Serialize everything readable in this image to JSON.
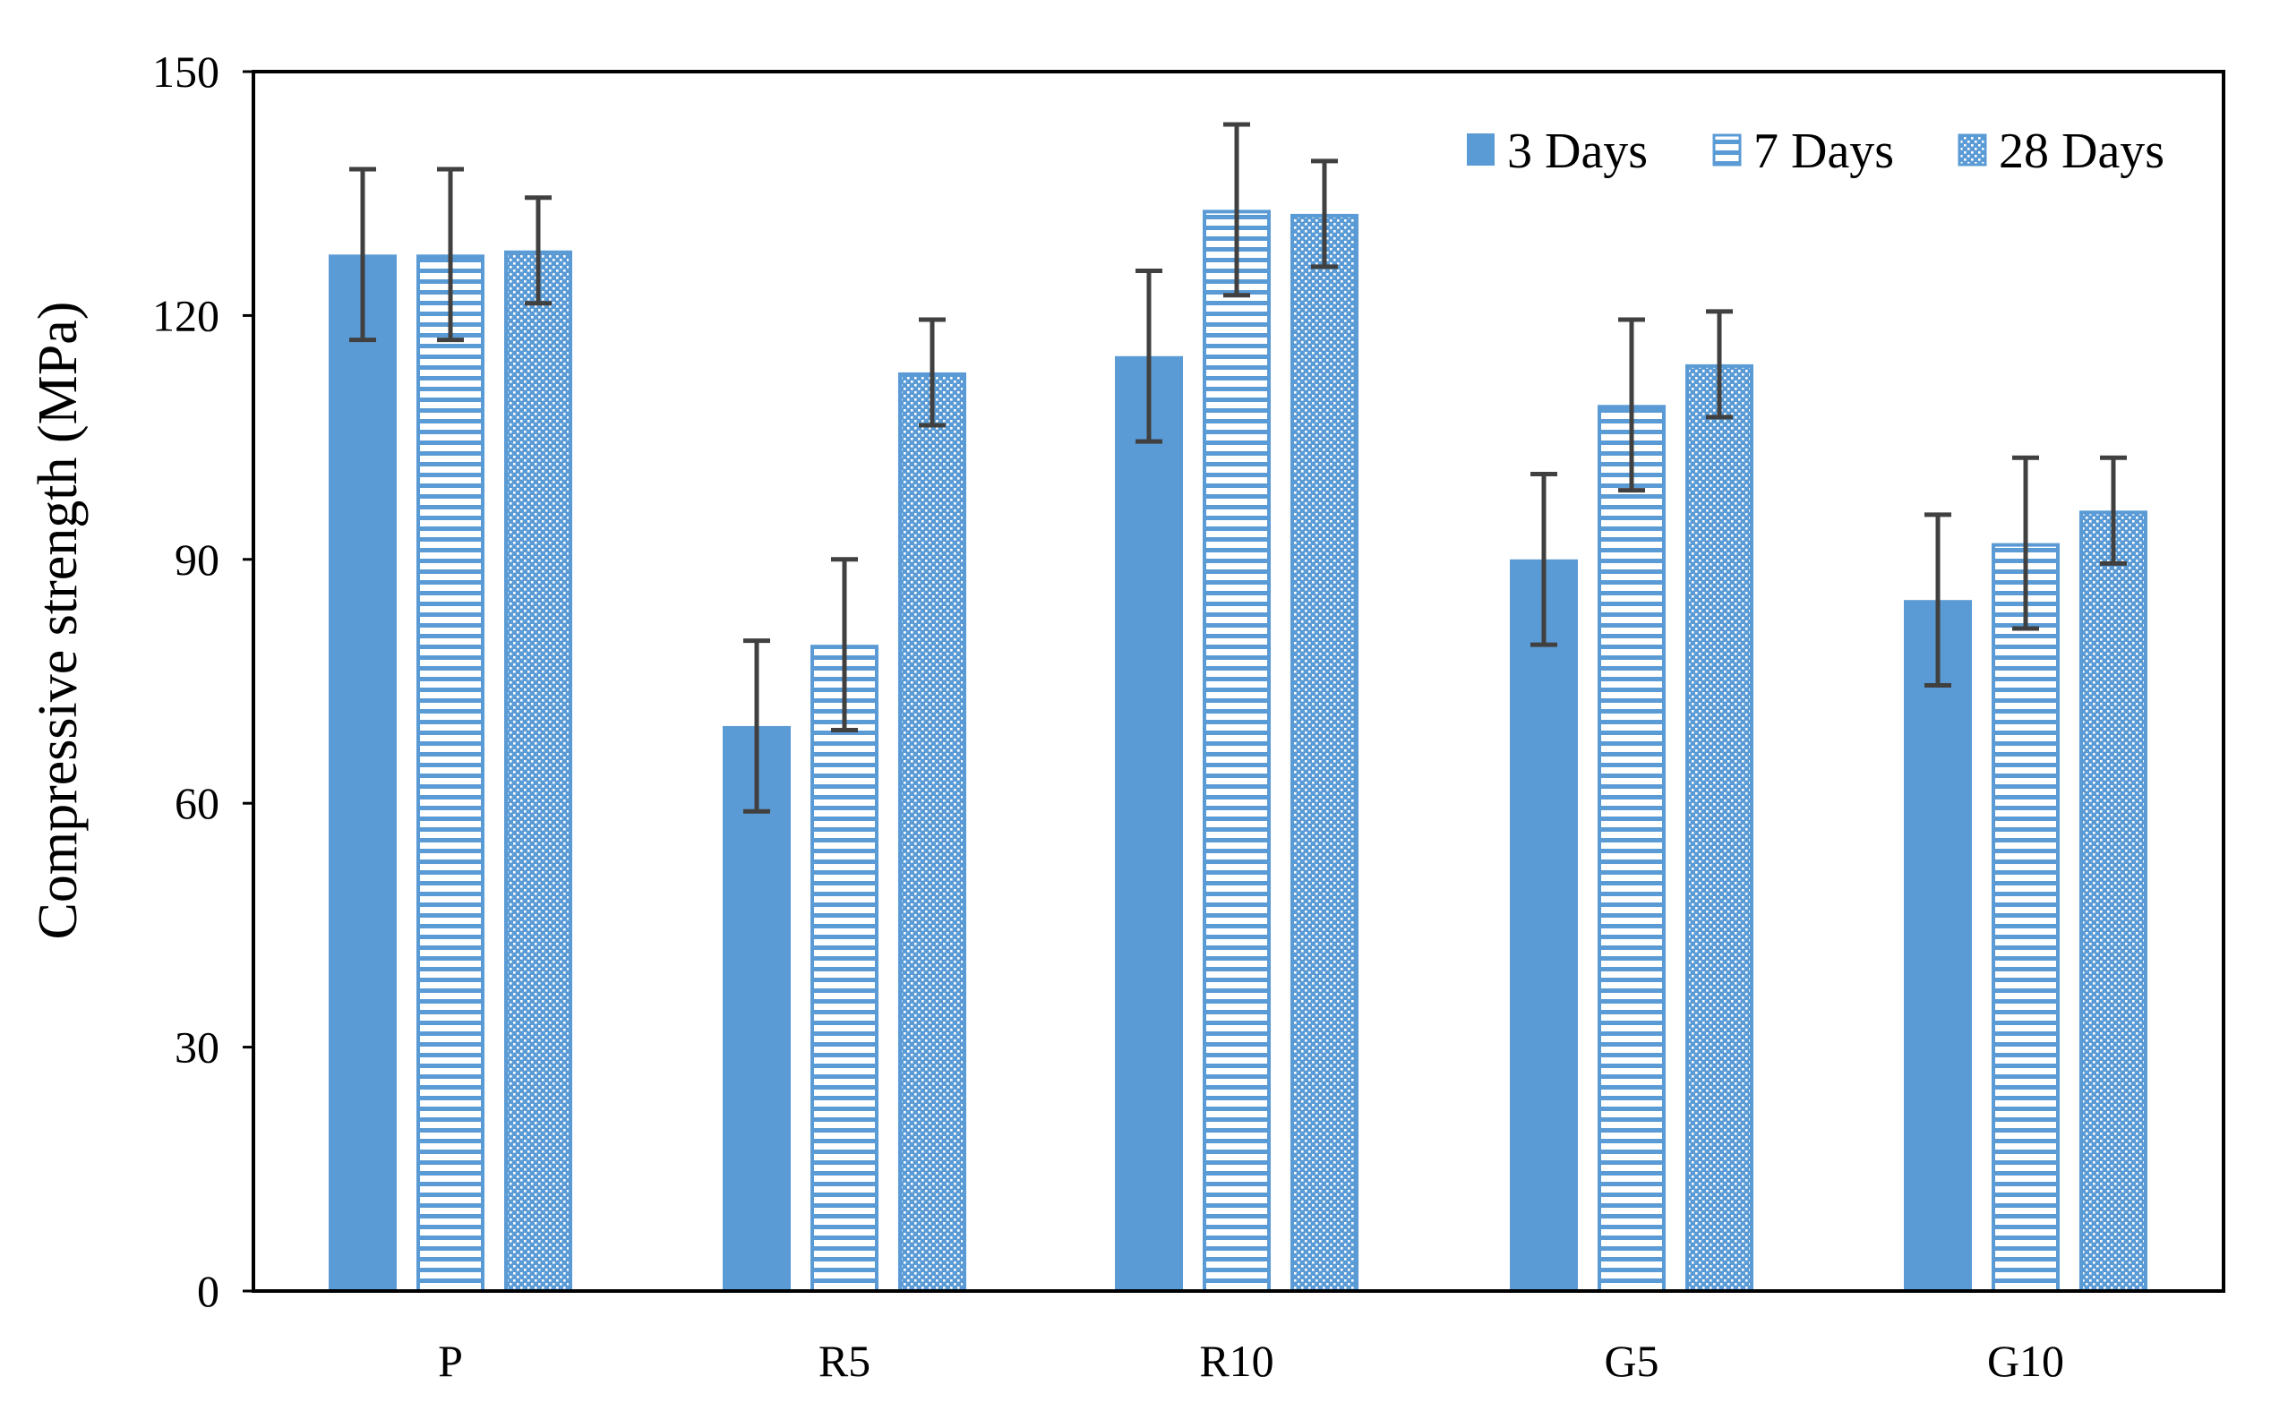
{
  "chart_data": {
    "type": "bar",
    "title": "",
    "xlabel": "",
    "ylabel": "Compressive strength (MPa)",
    "ylim": [
      0,
      150
    ],
    "yticks": [
      0,
      30,
      60,
      90,
      120,
      150
    ],
    "grid": false,
    "legend_position": "top-right",
    "categories": [
      "P",
      "R5",
      "R10",
      "G5",
      "G10"
    ],
    "series": [
      {
        "name": "3 Days",
        "pattern": "solid",
        "values": [
          127.5,
          69.5,
          115,
          90,
          85
        ],
        "error": [
          10.5,
          10.5,
          10.5,
          10.5,
          10.5
        ]
      },
      {
        "name": "7 Days",
        "pattern": "horizontal-stripes",
        "values": [
          127.5,
          79.5,
          133,
          109,
          92
        ],
        "error": [
          10.5,
          10.5,
          10.5,
          10.5,
          10.5
        ]
      },
      {
        "name": "28 Days",
        "pattern": "dotted",
        "values": [
          128,
          113,
          132.5,
          114,
          96
        ],
        "error": [
          6.5,
          6.5,
          6.5,
          6.5,
          6.5
        ]
      }
    ],
    "colors": {
      "bar": "#5b9bd5",
      "bar_stroke": "#5b9bd5",
      "error_bar": "#404040",
      "axis": "#000000"
    }
  }
}
